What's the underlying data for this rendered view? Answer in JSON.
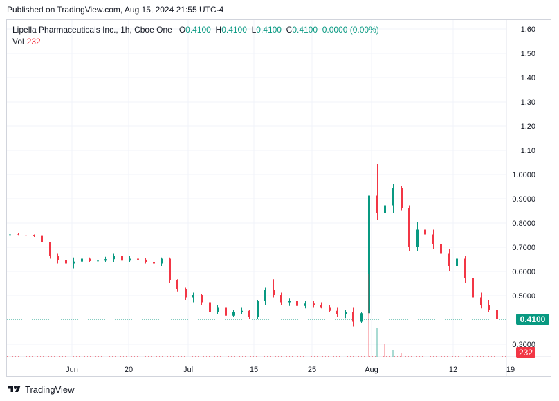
{
  "header": {
    "published": "Published on TradingView.com, Aug 15, 2024 21:55 UTC-4"
  },
  "legend": {
    "symbol": "Lipella Pharmaceuticals Inc., 1h, Cboe One",
    "open_label": "O",
    "open_value": "0.4100",
    "high_label": "H",
    "high_value": "0.4100",
    "low_label": "L",
    "low_value": "0.4100",
    "close_label": "C",
    "close_value": "0.4100",
    "change": "0.0000 (0.00%)",
    "volume_label": "Vol",
    "volume_value": "232"
  },
  "footer": {
    "brand": "TradingView"
  },
  "colors": {
    "up": "#089981",
    "down": "#f23645",
    "grid": "#f0f3fa",
    "price_line": "#089981"
  },
  "chart_data": {
    "type": "candlestick",
    "interval": "1h",
    "y_ticks": [
      "1.60",
      "1.50",
      "1.40",
      "1.30",
      "1.20",
      "1.10",
      "1.0000",
      "0.9000",
      "0.8000",
      "0.7000",
      "0.6000",
      "0.5000",
      "0.3000"
    ],
    "x_ticks": [
      "Jun",
      "20",
      "Jul",
      "15",
      "25",
      "Aug",
      "12",
      "19"
    ],
    "last_price_label": "0.4100",
    "volume_label": "232",
    "price_line": 0.41,
    "series": [
      {
        "name": "price",
        "points": [
          [
            "May 21",
            0.755,
            0.765,
            0.75,
            0.76
          ],
          [
            "May 22",
            0.76,
            0.765,
            0.755,
            0.758
          ],
          [
            "May 23",
            0.758,
            0.762,
            0.752,
            0.756
          ],
          [
            "May 24",
            0.756,
            0.76,
            0.75,
            0.754
          ],
          [
            "May 28",
            0.754,
            0.775,
            0.72,
            0.73
          ],
          [
            "May 29",
            0.73,
            0.73,
            0.66,
            0.67
          ],
          [
            "May 30",
            0.67,
            0.68,
            0.64,
            0.655
          ],
          [
            "May 31",
            0.655,
            0.665,
            0.625,
            0.64
          ],
          [
            "Jun 3",
            0.64,
            0.665,
            0.62,
            0.648
          ],
          [
            "Jun 4",
            0.648,
            0.67,
            0.64,
            0.66
          ],
          [
            "Jun 5",
            0.66,
            0.665,
            0.645,
            0.65
          ],
          [
            "Jun 6",
            0.65,
            0.665,
            0.64,
            0.652
          ],
          [
            "Jun 7",
            0.652,
            0.668,
            0.645,
            0.658
          ],
          [
            "Jun 10",
            0.658,
            0.68,
            0.645,
            0.67
          ],
          [
            "Jun 11",
            0.67,
            0.676,
            0.648,
            0.652
          ],
          [
            "Jun 12",
            0.652,
            0.672,
            0.645,
            0.66
          ],
          [
            "Jun 13",
            0.66,
            0.668,
            0.65,
            0.656
          ],
          [
            "Jun 14",
            0.656,
            0.662,
            0.64,
            0.645
          ],
          [
            "Jun 17",
            0.645,
            0.652,
            0.632,
            0.64
          ],
          [
            "Jun 18",
            0.64,
            0.665,
            0.63,
            0.66
          ],
          [
            "Jun 20",
            0.66,
            0.665,
            0.56,
            0.57
          ],
          [
            "Jun 21",
            0.57,
            0.575,
            0.525,
            0.535
          ],
          [
            "Jun 24",
            0.535,
            0.54,
            0.49,
            0.5
          ],
          [
            "Jun 25",
            0.5,
            0.52,
            0.48,
            0.51
          ],
          [
            "Jun 26",
            0.51,
            0.515,
            0.47,
            0.48
          ],
          [
            "Jun 27",
            0.48,
            0.49,
            0.425,
            0.44
          ],
          [
            "Jun 28",
            0.44,
            0.47,
            0.43,
            0.46
          ],
          [
            "Jul 1",
            0.46,
            0.47,
            0.41,
            0.425
          ],
          [
            "Jul 2",
            0.425,
            0.45,
            0.42,
            0.44
          ],
          [
            "Jul 3",
            0.44,
            0.46,
            0.43,
            0.445
          ],
          [
            "Jul 5",
            0.445,
            0.45,
            0.41,
            0.42
          ],
          [
            "Jul 8",
            0.42,
            0.49,
            0.41,
            0.485
          ],
          [
            "Jul 9",
            0.485,
            0.54,
            0.47,
            0.53
          ],
          [
            "Jul 10",
            0.53,
            0.575,
            0.5,
            0.51
          ],
          [
            "Jul 11",
            0.51,
            0.52,
            0.47,
            0.48
          ],
          [
            "Jul 12",
            0.48,
            0.495,
            0.465,
            0.485
          ],
          [
            "Jul 15",
            0.485,
            0.495,
            0.46,
            0.465
          ],
          [
            "Jul 16",
            0.465,
            0.485,
            0.455,
            0.475
          ],
          [
            "Jul 17",
            0.475,
            0.485,
            0.46,
            0.47
          ],
          [
            "Jul 18",
            0.47,
            0.48,
            0.455,
            0.46
          ],
          [
            "Jul 19",
            0.46,
            0.47,
            0.44,
            0.445
          ],
          [
            "Jul 22",
            0.445,
            0.46,
            0.42,
            0.43
          ],
          [
            "Jul 23",
            0.43,
            0.45,
            0.415,
            0.44
          ],
          [
            "Jul 24",
            0.44,
            0.46,
            0.38,
            0.4
          ],
          [
            "Jul 25",
            0.4,
            0.44,
            0.395,
            0.435
          ],
          [
            "Jul 26",
            0.435,
            1.5,
            0.9,
            0.92
          ],
          [
            "Jul 29",
            0.92,
            1.05,
            0.82,
            0.85
          ],
          [
            "Jul 30",
            0.85,
            0.92,
            0.72,
            0.88
          ],
          [
            "Jul 31",
            0.88,
            0.97,
            0.85,
            0.95
          ],
          [
            "Aug 1",
            0.95,
            0.96,
            0.86,
            0.87
          ],
          [
            "Aug 2",
            0.87,
            0.88,
            0.69,
            0.71
          ],
          [
            "Aug 5",
            0.71,
            0.81,
            0.69,
            0.78
          ],
          [
            "Aug 6",
            0.78,
            0.8,
            0.74,
            0.76
          ],
          [
            "Aug 7",
            0.76,
            0.78,
            0.7,
            0.72
          ],
          [
            "Aug 8",
            0.72,
            0.74,
            0.66,
            0.68
          ],
          [
            "Aug 9",
            0.68,
            0.7,
            0.61,
            0.63
          ],
          [
            "Aug 12",
            0.63,
            0.69,
            0.6,
            0.66
          ],
          [
            "Aug 13",
            0.66,
            0.67,
            0.56,
            0.58
          ],
          [
            "Aug 13b",
            0.58,
            0.6,
            0.48,
            0.5
          ],
          [
            "Aug 14",
            0.5,
            0.52,
            0.455,
            0.47
          ],
          [
            "Aug 14b",
            0.47,
            0.49,
            0.44,
            0.45
          ],
          [
            "Aug 15",
            0.45,
            0.46,
            0.405,
            0.41
          ]
        ]
      }
    ]
  }
}
